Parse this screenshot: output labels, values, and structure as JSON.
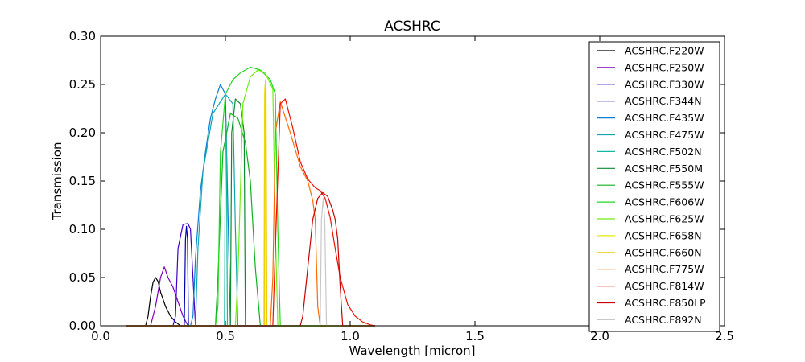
{
  "chart_data": {
    "type": "line",
    "title": "ACSHRC",
    "xlabel": "Wavelength [micron]",
    "ylabel": "Transmission",
    "xlim": [
      0.0,
      2.5
    ],
    "ylim": [
      0.0,
      0.3
    ],
    "xticks": [
      "0.0",
      "0.5",
      "1.0",
      "1.5",
      "2.0",
      "2.5"
    ],
    "yticks": [
      "0.00",
      "0.05",
      "0.10",
      "0.15",
      "0.20",
      "0.25",
      "0.30"
    ],
    "grid": false,
    "legend_position": "right",
    "series": [
      {
        "name": "ACSHRC.F220W",
        "color": "#000000",
        "x": [
          0.1,
          0.18,
          0.19,
          0.2,
          0.21,
          0.22,
          0.23,
          0.24,
          0.26,
          0.28,
          0.3,
          0.32,
          1.1
        ],
        "y": [
          0,
          0,
          0.01,
          0.03,
          0.045,
          0.05,
          0.046,
          0.035,
          0.02,
          0.01,
          0.004,
          0,
          0
        ]
      },
      {
        "name": "ACSHRC.F250W",
        "color": "#7f00bf",
        "x": [
          0.1,
          0.2,
          0.22,
          0.24,
          0.255,
          0.27,
          0.29,
          0.31,
          0.33,
          0.35,
          1.1
        ],
        "y": [
          0,
          0,
          0.02,
          0.05,
          0.061,
          0.05,
          0.04,
          0.025,
          0.01,
          0,
          0
        ]
      },
      {
        "name": "ACSHRC.F330W",
        "color": "#4400c8",
        "x": [
          0.1,
          0.29,
          0.3,
          0.31,
          0.33,
          0.35,
          0.36,
          0.37,
          0.38,
          1.1
        ],
        "y": [
          0,
          0,
          0.01,
          0.08,
          0.105,
          0.106,
          0.1,
          0.05,
          0,
          0
        ]
      },
      {
        "name": "ACSHRC.F344N",
        "color": "#0000b0",
        "x": [
          0.1,
          0.335,
          0.34,
          0.344,
          0.348,
          0.352,
          1.1
        ],
        "y": [
          0,
          0,
          0.09,
          0.103,
          0.09,
          0,
          0
        ]
      },
      {
        "name": "ACSHRC.F435W",
        "color": "#0b7fd6",
        "x": [
          0.1,
          0.36,
          0.37,
          0.38,
          0.4,
          0.42,
          0.44,
          0.46,
          0.48,
          0.5,
          0.51,
          0.52,
          1.1
        ],
        "y": [
          0,
          0,
          0.01,
          0.07,
          0.14,
          0.18,
          0.215,
          0.235,
          0.25,
          0.24,
          0.12,
          0,
          0
        ]
      },
      {
        "name": "ACSHRC.F475W",
        "color": "#12a5b0",
        "x": [
          0.1,
          0.38,
          0.39,
          0.41,
          0.45,
          0.5,
          0.53,
          0.54,
          0.55,
          1.1
        ],
        "y": [
          0,
          0,
          0.08,
          0.16,
          0.22,
          0.24,
          0.23,
          0.1,
          0,
          0
        ]
      },
      {
        "name": "ACSHRC.F502N",
        "color": "#12b8a0",
        "x": [
          0.1,
          0.496,
          0.5,
          0.502,
          0.504,
          0.508,
          1.1
        ],
        "y": [
          0,
          0,
          0.2,
          0.21,
          0.2,
          0,
          0
        ]
      },
      {
        "name": "ACSHRC.F550M",
        "color": "#0b8a30",
        "x": [
          0.1,
          0.52,
          0.525,
          0.54,
          0.56,
          0.575,
          0.58,
          1.1
        ],
        "y": [
          0,
          0,
          0.2,
          0.235,
          0.23,
          0.2,
          0,
          0
        ]
      },
      {
        "name": "ACSHRC.F555W",
        "color": "#10b020",
        "x": [
          0.1,
          0.46,
          0.47,
          0.49,
          0.52,
          0.55,
          0.58,
          0.6,
          0.62,
          0.64,
          1.1
        ],
        "y": [
          0,
          0,
          0.05,
          0.18,
          0.22,
          0.215,
          0.19,
          0.15,
          0.06,
          0,
          0
        ]
      },
      {
        "name": "ACSHRC.F606W",
        "color": "#20d820",
        "x": [
          0.1,
          0.46,
          0.47,
          0.48,
          0.5,
          0.53,
          0.56,
          0.6,
          0.64,
          0.68,
          0.7,
          0.71,
          0.72,
          1.1
        ],
        "y": [
          0,
          0,
          0.02,
          0.18,
          0.24,
          0.255,
          0.262,
          0.268,
          0.265,
          0.255,
          0.24,
          0.1,
          0,
          0
        ]
      },
      {
        "name": "ACSHRC.F625W",
        "color": "#70ee10",
        "x": [
          0.1,
          0.54,
          0.55,
          0.57,
          0.6,
          0.63,
          0.66,
          0.69,
          0.7,
          0.71,
          1.1
        ],
        "y": [
          0,
          0,
          0.05,
          0.23,
          0.258,
          0.265,
          0.262,
          0.245,
          0.1,
          0,
          0
        ]
      },
      {
        "name": "ACSHRC.F658N",
        "color": "#e8e800",
        "x": [
          0.1,
          0.654,
          0.657,
          0.659,
          0.661,
          0.664,
          1.1
        ],
        "y": [
          0,
          0,
          0.24,
          0.25,
          0.24,
          0,
          0
        ]
      },
      {
        "name": "ACSHRC.F660N",
        "color": "#f0c800",
        "x": [
          0.1,
          0.657,
          0.659,
          0.661,
          0.663,
          0.666,
          1.1
        ],
        "y": [
          0,
          0,
          0.245,
          0.255,
          0.245,
          0,
          0
        ]
      },
      {
        "name": "ACSHRC.F775W",
        "color": "#ff6a00",
        "x": [
          0.1,
          0.68,
          0.69,
          0.7,
          0.72,
          0.76,
          0.8,
          0.83,
          0.85,
          0.86,
          0.87,
          0.88,
          1.1
        ],
        "y": [
          0,
          0,
          0.05,
          0.2,
          0.232,
          0.2,
          0.165,
          0.15,
          0.13,
          0.11,
          0.02,
          0,
          0
        ]
      },
      {
        "name": "ACSHRC.F814W",
        "color": "#ee1100",
        "x": [
          0.1,
          0.69,
          0.7,
          0.72,
          0.74,
          0.77,
          0.8,
          0.83,
          0.86,
          0.88,
          0.9,
          0.92,
          0.94,
          0.96,
          0.99,
          1.02,
          1.05,
          1.08,
          1.1
        ],
        "y": [
          0,
          0,
          0.08,
          0.23,
          0.235,
          0.205,
          0.17,
          0.152,
          0.143,
          0.14,
          0.132,
          0.112,
          0.08,
          0.05,
          0.022,
          0.01,
          0.004,
          0.001,
          0
        ]
      },
      {
        "name": "ACSHRC.F850LP",
        "color": "#cc0000",
        "x": [
          0.1,
          0.8,
          0.81,
          0.83,
          0.85,
          0.87,
          0.89,
          0.91,
          0.93,
          0.94,
          0.95,
          0.96,
          0.97,
          1.1
        ],
        "y": [
          0,
          0,
          0.01,
          0.06,
          0.11,
          0.132,
          0.138,
          0.134,
          0.12,
          0.11,
          0.09,
          0.04,
          0,
          0
        ]
      },
      {
        "name": "ACSHRC.F892N",
        "color": "#c8c8c8",
        "x": [
          0.1,
          0.88,
          0.885,
          0.892,
          0.898,
          0.905,
          1.1
        ],
        "y": [
          0,
          0,
          0.11,
          0.132,
          0.11,
          0,
          0
        ]
      }
    ]
  }
}
